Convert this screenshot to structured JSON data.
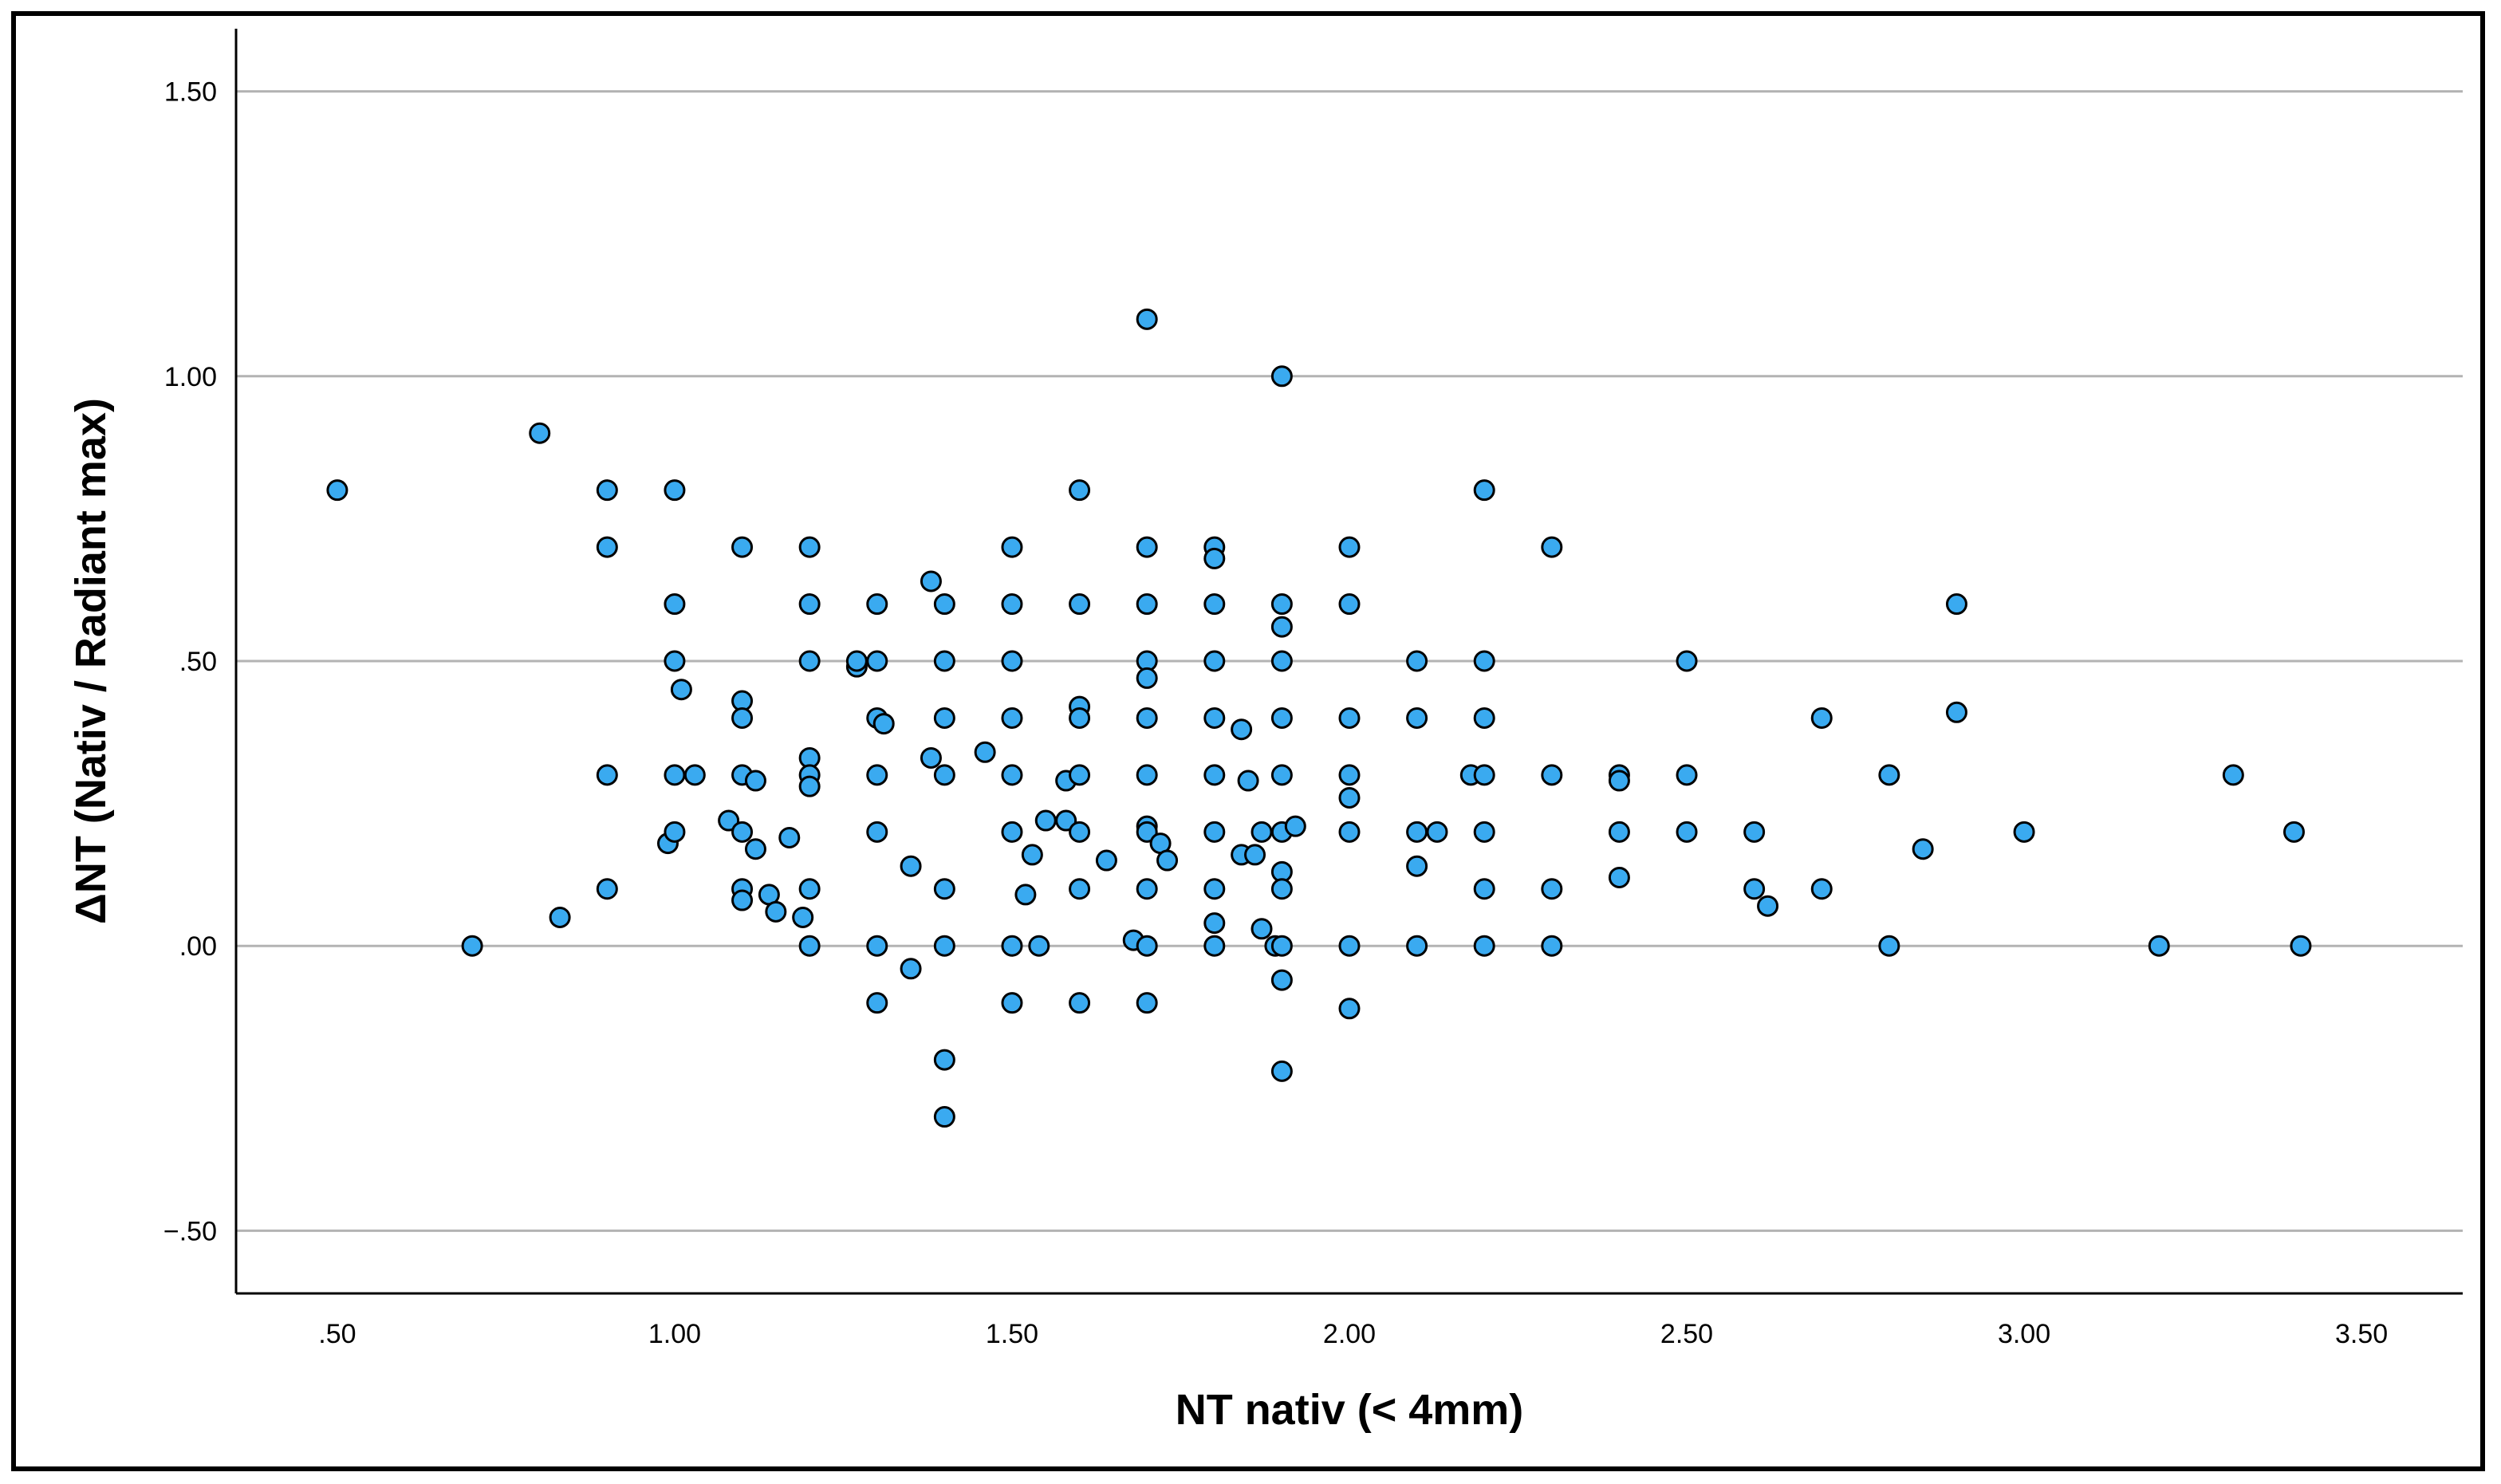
{
  "chart_data": {
    "type": "scatter",
    "title": "",
    "xlabel": "NT nativ (< 4mm)",
    "ylabel": "ΔNT (Nativ / Radiant max)",
    "xlim": [
      0.35,
      3.65
    ],
    "ylim": [
      -0.61,
      1.61
    ],
    "xticks": [
      0.5,
      1.0,
      1.5,
      2.0,
      2.5,
      3.0,
      3.5
    ],
    "xtick_labels": [
      ".50",
      "1.00",
      "1.50",
      "2.00",
      "2.50",
      "3.00",
      "3.50"
    ],
    "yticks": [
      -0.5,
      0.0,
      0.5,
      1.0,
      1.5
    ],
    "ytick_labels": [
      "−.50",
      ".00",
      ".50",
      "1.00",
      "1.50"
    ],
    "grid": "horizontal",
    "marker_fill": "#3aaaf0",
    "marker_edge": "#000000",
    "gridline_color": "#b3b3b3",
    "points": [
      [
        0.5,
        0.8
      ],
      [
        0.7,
        0.0
      ],
      [
        0.8,
        0.9
      ],
      [
        0.83,
        0.05
      ],
      [
        0.9,
        0.8
      ],
      [
        0.9,
        0.7
      ],
      [
        0.9,
        0.3
      ],
      [
        0.9,
        0.1
      ],
      [
        0.99,
        0.18
      ],
      [
        1.0,
        0.8
      ],
      [
        1.0,
        0.6
      ],
      [
        1.0,
        0.5
      ],
      [
        1.0,
        0.3
      ],
      [
        1.0,
        0.2
      ],
      [
        1.01,
        0.45
      ],
      [
        1.03,
        0.3
      ],
      [
        1.08,
        0.22
      ],
      [
        1.1,
        0.7
      ],
      [
        1.1,
        0.43
      ],
      [
        1.1,
        0.4
      ],
      [
        1.1,
        0.3
      ],
      [
        1.1,
        0.2
      ],
      [
        1.1,
        0.1
      ],
      [
        1.1,
        0.08
      ],
      [
        1.12,
        0.29
      ],
      [
        1.12,
        0.17
      ],
      [
        1.14,
        0.09
      ],
      [
        1.15,
        0.06
      ],
      [
        1.17,
        0.19
      ],
      [
        1.19,
        0.05
      ],
      [
        1.2,
        0.7
      ],
      [
        1.2,
        0.6
      ],
      [
        1.2,
        0.5
      ],
      [
        1.2,
        0.33
      ],
      [
        1.2,
        0.3
      ],
      [
        1.2,
        0.28
      ],
      [
        1.2,
        0.1
      ],
      [
        1.2,
        0.0
      ],
      [
        1.27,
        0.49
      ],
      [
        1.27,
        0.5
      ],
      [
        1.3,
        0.6
      ],
      [
        1.3,
        0.5
      ],
      [
        1.3,
        0.4
      ],
      [
        1.31,
        0.39
      ],
      [
        1.3,
        0.3
      ],
      [
        1.3,
        0.2
      ],
      [
        1.3,
        0.0
      ],
      [
        1.3,
        -0.1
      ],
      [
        1.35,
        0.14
      ],
      [
        1.35,
        -0.04
      ],
      [
        1.38,
        0.64
      ],
      [
        1.38,
        0.33
      ],
      [
        1.4,
        0.6
      ],
      [
        1.4,
        0.5
      ],
      [
        1.4,
        0.4
      ],
      [
        1.4,
        0.3
      ],
      [
        1.4,
        0.1
      ],
      [
        1.4,
        0.0
      ],
      [
        1.4,
        -0.2
      ],
      [
        1.4,
        -0.3
      ],
      [
        1.46,
        0.34
      ],
      [
        1.5,
        0.7
      ],
      [
        1.5,
        0.6
      ],
      [
        1.5,
        0.5
      ],
      [
        1.5,
        0.4
      ],
      [
        1.5,
        0.3
      ],
      [
        1.5,
        0.2
      ],
      [
        1.5,
        0.0
      ],
      [
        1.5,
        -0.1
      ],
      [
        1.52,
        0.09
      ],
      [
        1.53,
        0.16
      ],
      [
        1.54,
        0.0
      ],
      [
        1.55,
        0.22
      ],
      [
        1.58,
        0.29
      ],
      [
        1.58,
        0.22
      ],
      [
        1.6,
        0.8
      ],
      [
        1.6,
        0.6
      ],
      [
        1.6,
        0.42
      ],
      [
        1.6,
        0.4
      ],
      [
        1.6,
        0.3
      ],
      [
        1.6,
        0.2
      ],
      [
        1.6,
        0.1
      ],
      [
        1.6,
        -0.1
      ],
      [
        1.64,
        0.15
      ],
      [
        1.68,
        0.01
      ],
      [
        1.7,
        1.1
      ],
      [
        1.7,
        0.7
      ],
      [
        1.7,
        0.6
      ],
      [
        1.7,
        0.5
      ],
      [
        1.7,
        0.47
      ],
      [
        1.7,
        0.4
      ],
      [
        1.7,
        0.3
      ],
      [
        1.7,
        0.21
      ],
      [
        1.7,
        0.2
      ],
      [
        1.7,
        0.1
      ],
      [
        1.7,
        0.0
      ],
      [
        1.7,
        -0.1
      ],
      [
        1.72,
        0.18
      ],
      [
        1.73,
        0.15
      ],
      [
        1.8,
        0.7
      ],
      [
        1.8,
        0.68
      ],
      [
        1.8,
        0.6
      ],
      [
        1.8,
        0.5
      ],
      [
        1.8,
        0.4
      ],
      [
        1.8,
        0.3
      ],
      [
        1.8,
        0.2
      ],
      [
        1.8,
        0.1
      ],
      [
        1.8,
        0.04
      ],
      [
        1.8,
        0.0
      ],
      [
        1.84,
        0.38
      ],
      [
        1.84,
        0.16
      ],
      [
        1.85,
        0.29
      ],
      [
        1.86,
        0.16
      ],
      [
        1.87,
        0.2
      ],
      [
        1.87,
        0.03
      ],
      [
        1.89,
        0.0
      ],
      [
        1.9,
        1.0
      ],
      [
        1.9,
        0.6
      ],
      [
        1.9,
        0.56
      ],
      [
        1.9,
        0.5
      ],
      [
        1.9,
        0.4
      ],
      [
        1.9,
        0.3
      ],
      [
        1.9,
        0.2
      ],
      [
        1.9,
        0.13
      ],
      [
        1.9,
        0.1
      ],
      [
        1.9,
        0.0
      ],
      [
        1.9,
        -0.06
      ],
      [
        1.9,
        -0.22
      ],
      [
        1.92,
        0.21
      ],
      [
        2.0,
        0.7
      ],
      [
        2.0,
        0.6
      ],
      [
        2.0,
        0.4
      ],
      [
        2.0,
        0.3
      ],
      [
        2.0,
        0.26
      ],
      [
        2.0,
        0.2
      ],
      [
        2.0,
        0.0
      ],
      [
        2.0,
        -0.11
      ],
      [
        2.1,
        0.5
      ],
      [
        2.1,
        0.4
      ],
      [
        2.1,
        0.2
      ],
      [
        2.1,
        0.14
      ],
      [
        2.1,
        0.0
      ],
      [
        2.13,
        0.2
      ],
      [
        2.18,
        0.3
      ],
      [
        2.2,
        0.8
      ],
      [
        2.2,
        0.5
      ],
      [
        2.2,
        0.4
      ],
      [
        2.2,
        0.3
      ],
      [
        2.2,
        0.2
      ],
      [
        2.2,
        0.1
      ],
      [
        2.2,
        0.0
      ],
      [
        2.3,
        0.7
      ],
      [
        2.3,
        0.3
      ],
      [
        2.3,
        0.1
      ],
      [
        2.3,
        0.0
      ],
      [
        2.4,
        0.3
      ],
      [
        2.4,
        0.29
      ],
      [
        2.4,
        0.2
      ],
      [
        2.4,
        0.12
      ],
      [
        2.5,
        0.5
      ],
      [
        2.5,
        0.3
      ],
      [
        2.5,
        0.2
      ],
      [
        2.6,
        0.2
      ],
      [
        2.6,
        0.1
      ],
      [
        2.62,
        0.07
      ],
      [
        2.7,
        0.4
      ],
      [
        2.7,
        0.1
      ],
      [
        2.8,
        0.3
      ],
      [
        2.8,
        0.0
      ],
      [
        2.85,
        0.17
      ],
      [
        2.9,
        0.6
      ],
      [
        2.9,
        0.41
      ],
      [
        3.0,
        0.2
      ],
      [
        3.2,
        0.0
      ],
      [
        3.31,
        0.3
      ],
      [
        3.4,
        0.2
      ],
      [
        3.41,
        0.0
      ]
    ]
  }
}
